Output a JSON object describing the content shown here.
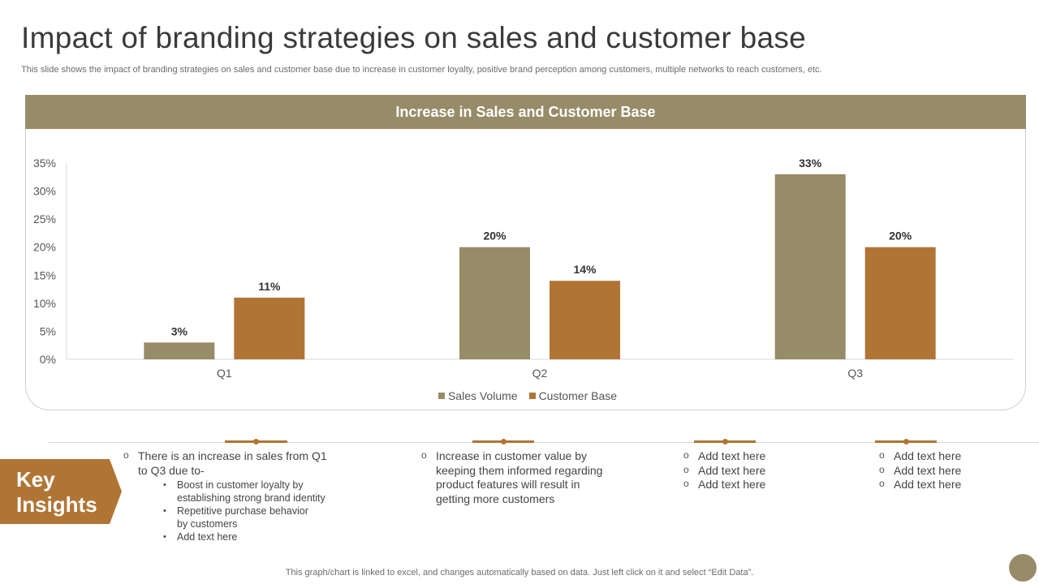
{
  "page": {
    "title": "Impact of branding strategies on sales and customer base",
    "subtitle": "This slide shows the impact of branding strategies on sales and customer base due to increase in customer loyalty, positive brand perception among customers, multiple networks to reach customers, etc.",
    "footer": "This graph/chart is linked to excel,  and changes automatically based on data. Just left click on it and select “Edit Data”."
  },
  "chart_data": {
    "type": "bar",
    "title": "Increase in Sales and Customer Base",
    "categories": [
      "Q1",
      "Q2",
      "Q3"
    ],
    "series": [
      {
        "name": "Sales Volume",
        "values": [
          3,
          20,
          33
        ],
        "color": "#978c68"
      },
      {
        "name": "Customer Base",
        "values": [
          11,
          14,
          20
        ],
        "color": "#b07535"
      }
    ],
    "value_labels": [
      [
        "3%",
        "20%",
        "33%"
      ],
      [
        "11%",
        "14%",
        "20%"
      ]
    ],
    "yticks": [
      "0%",
      "5%",
      "10%",
      "15%",
      "20%",
      "25%",
      "30%",
      "35%"
    ],
    "ylim": [
      0,
      35
    ],
    "xlabel": "",
    "ylabel": "",
    "grid": false,
    "legend_position": "bottom"
  },
  "insights": {
    "label": "Key Insights",
    "label_line1": "Key",
    "label_line2": "Insights",
    "col1": {
      "main_line1": "There is an increase in sales from Q1",
      "main_line2": "to Q3 due to-",
      "sub": [
        [
          "Boost in customer loyalty by",
          "establishing strong brand identity"
        ],
        [
          "Repetitive  purchase behavior",
          "by customers"
        ],
        [
          "Add text here"
        ]
      ]
    },
    "col2": {
      "lines": [
        "Increase in customer value by",
        "keeping them informed regarding",
        "product features will result in",
        "getting more customers"
      ]
    },
    "col3": {
      "items": [
        "Add text here",
        "Add text here",
        "Add text here"
      ]
    },
    "col4": {
      "items": [
        "Add text here",
        "Add text here",
        "Add text here"
      ]
    }
  },
  "colors": {
    "accent_olive": "#978c68",
    "accent_brown": "#b07535"
  }
}
